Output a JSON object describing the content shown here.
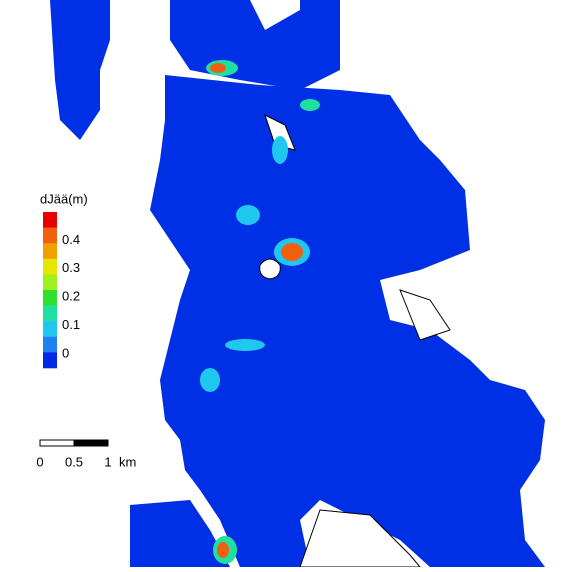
{
  "legend": {
    "title": "dJää(m)",
    "colors": [
      "#e60000",
      "#f06010",
      "#f0a000",
      "#e6e600",
      "#a0f020",
      "#30e030",
      "#20e0a0",
      "#20c8f0",
      "#2080f0",
      "#0028e6"
    ],
    "labels": [
      0.4,
      0.3,
      0.2,
      0.1,
      0
    ]
  },
  "scale_bar": {
    "ticks": [
      0,
      0.5,
      1
    ],
    "unit": "km"
  }
}
